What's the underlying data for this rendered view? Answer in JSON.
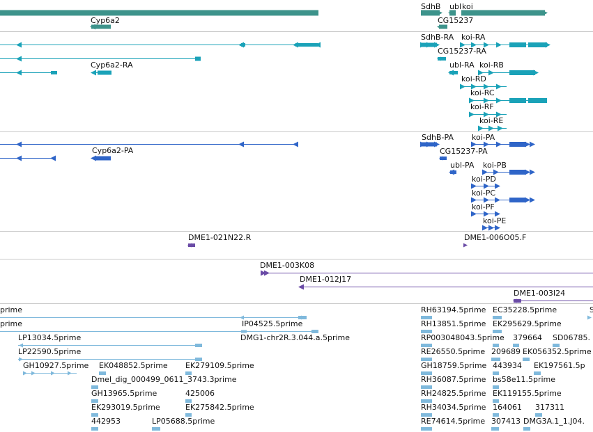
{
  "colors": {
    "gene": "#3d938b",
    "transcript": "#1aa2b8",
    "protein": "#2f65c8",
    "clone": "#6a4ba6",
    "est": "#7fb9dc"
  },
  "tracks": {
    "genes": {
      "labels": [
        "SdhB",
        "ubl",
        "koi",
        "Cyp6a2",
        "CG15237"
      ]
    },
    "transcripts": {
      "labels": [
        "SdhB-RA",
        "koi-RA",
        "CG15237-RA",
        "Cyp6a2-RA",
        "ubl-RA",
        "koi-RB",
        "koi-RD",
        "koi-RC",
        "koi-RF",
        "koi-RE"
      ]
    },
    "proteins": {
      "labels": [
        "SdhB-PA",
        "koi-PA",
        "Cyp6a2-PA",
        "CG15237-PA",
        "ubl-PA",
        "koi-PB",
        "koi-PD",
        "koi-PC",
        "koi-PF",
        "koi-PE"
      ]
    },
    "clones_a": {
      "labels": [
        "DME1-021N22.R",
        "DME1-006O05.F"
      ]
    },
    "clones_b": {
      "labels": [
        "DME1-003K08",
        "DME1-012J17",
        "DME1-003I24"
      ]
    },
    "ests": {
      "labels": [
        "prime",
        "RH63194.5prime",
        "EC35228.5prime",
        "S",
        "prime",
        "IP04525.5prime",
        "RH13851.5prime",
        "EK295629.5prime",
        "LP13034.5prime",
        "DMG1-chr2R.3.044.a.5prime",
        "RP003048043.5prime",
        "379664",
        "SD06785.",
        "LP22590.5prime",
        "RE26550.5prime",
        "209689",
        "EK056352.5prime",
        "GH10927.5prime",
        "EK048852.5prime",
        "EK279109.5prime",
        "GH18759.5prime",
        "443934",
        "EK197561.5p",
        "Dmel_dig_000499_0611_3743.3prime",
        "RH36087.5prime",
        "bs58e11.5prime",
        "GH13965.5prime",
        "425006",
        "RH24825.5prime",
        "EK119155.5prime",
        "EK293019.5prime",
        "EK275842.5prime",
        "RH34034.5prime",
        "164061",
        "317311",
        "442953",
        "LP05688.5prime",
        "RE74614.5prime",
        "307413",
        "DMG3A.1_1.J04."
      ]
    }
  }
}
